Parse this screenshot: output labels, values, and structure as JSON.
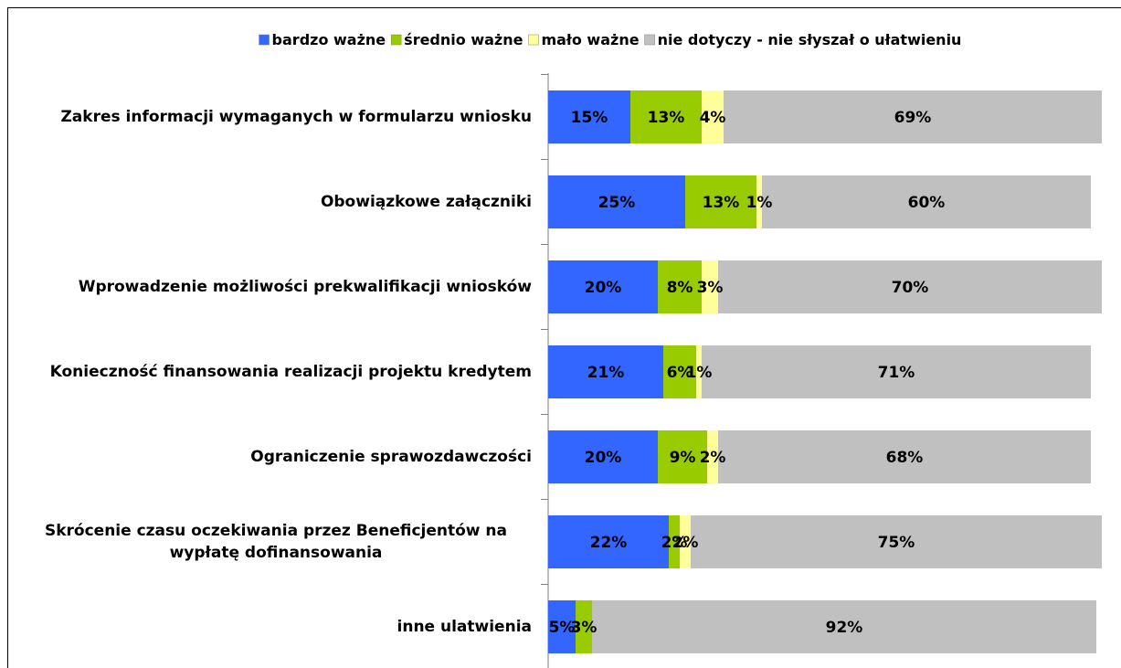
{
  "chart_data": {
    "type": "stacked_bar_horizontal",
    "categories": [
      "Zakres informacji wymaganych w formularzu wniosku",
      "Obowiązkowe załączniki",
      "Wprowadzenie możliwości prekwalifikacji wniosków",
      "Konieczność finansowania realizacji projektu kredytem",
      "Ograniczenie sprawozdawczości",
      "Skrócenie czasu oczekiwania przez Beneficjentów na wypłatę dofinansowania",
      "inne ulatwienia"
    ],
    "series": [
      {
        "name": "bardzo ważne",
        "color": "#3366ff",
        "values": [
          15,
          25,
          20,
          21,
          20,
          22,
          5
        ],
        "value_labels": [
          "15%",
          "25%",
          "20%",
          "21%",
          "20%",
          "22%",
          "5%"
        ]
      },
      {
        "name": "średnio ważne",
        "color": "#99cc00",
        "values": [
          13,
          13,
          8,
          6,
          9,
          2,
          3
        ],
        "value_labels": [
          "13%",
          "13%",
          "8%",
          "6%",
          "9%",
          "2%",
          "3%"
        ]
      },
      {
        "name": "mało ważne",
        "color": "#ffff99",
        "values": [
          4,
          1,
          3,
          1,
          2,
          2,
          0
        ],
        "value_labels": [
          "4%",
          "1%",
          "3%",
          "1%",
          "2%",
          "2%",
          null
        ]
      },
      {
        "name": "nie dotyczy - nie słyszał o ułatwieniu",
        "color": "#c0c0c0",
        "values": [
          69,
          60,
          70,
          71,
          68,
          75,
          92
        ],
        "value_labels": [
          "69%",
          "60%",
          "70%",
          "71%",
          "68%",
          "75%",
          "92%"
        ]
      }
    ],
    "xlim": [
      0,
      100
    ],
    "legend": "top"
  }
}
